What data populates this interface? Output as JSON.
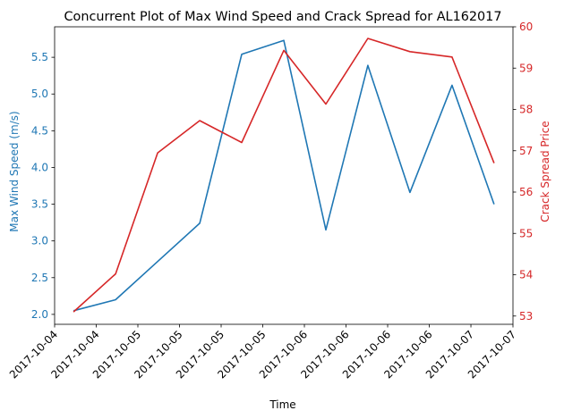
{
  "chart_data": {
    "type": "line",
    "title": "Concurrent Plot of Max Wind Speed and Crack Spread for AL162017",
    "xlabel": "Time",
    "x": [
      0,
      1,
      2,
      3,
      4,
      5,
      6,
      7,
      8,
      9,
      10
    ],
    "x_tick_labels": [
      "2017-10-04",
      "2017-10-04",
      "2017-10-05",
      "2017-10-05",
      "2017-10-05",
      "2017-10-05",
      "2017-10-06",
      "2017-10-06",
      "2017-10-06",
      "2017-10-06",
      "2017-10-07",
      "2017-10-07"
    ],
    "xlim": [
      -0.45,
      10.45
    ],
    "x_tick_positions": [
      -0.45,
      0.54,
      1.53,
      2.52,
      3.51,
      4.5,
      5.49,
      6.48,
      7.47,
      8.46,
      9.45,
      10.45
    ],
    "series": [
      {
        "name": "Max Wind Speed",
        "axis": "left",
        "color": "#1f77b4",
        "values": [
          2.05,
          2.2,
          2.72,
          3.24,
          5.54,
          5.73,
          3.15,
          5.39,
          3.66,
          5.12,
          3.5
        ]
      },
      {
        "name": "Crack Spread Price",
        "axis": "right",
        "color": "#d62728",
        "values": [
          53.1,
          54.02,
          56.95,
          57.73,
          57.2,
          59.43,
          58.13,
          59.72,
          59.4,
          59.27,
          56.7
        ]
      }
    ],
    "y_left": {
      "label": "Max Wind Speed (m/s)",
      "color": "#1f77b4",
      "ylim": [
        1.865,
        5.915
      ],
      "ticks": [
        2.0,
        2.5,
        3.0,
        3.5,
        4.0,
        4.5,
        5.0,
        5.5
      ],
      "tick_labels": [
        "2.0",
        "2.5",
        "3.0",
        "3.5",
        "4.0",
        "4.5",
        "5.0",
        "5.5"
      ]
    },
    "y_right": {
      "label": "Crack Spread Price",
      "color": "#d62728",
      "ylim": [
        52.8,
        60.0
      ],
      "ticks": [
        53,
        54,
        55,
        56,
        57,
        58,
        59,
        60
      ],
      "tick_labels": [
        "53",
        "54",
        "55",
        "56",
        "57",
        "58",
        "59",
        "60"
      ]
    },
    "grid": false
  }
}
